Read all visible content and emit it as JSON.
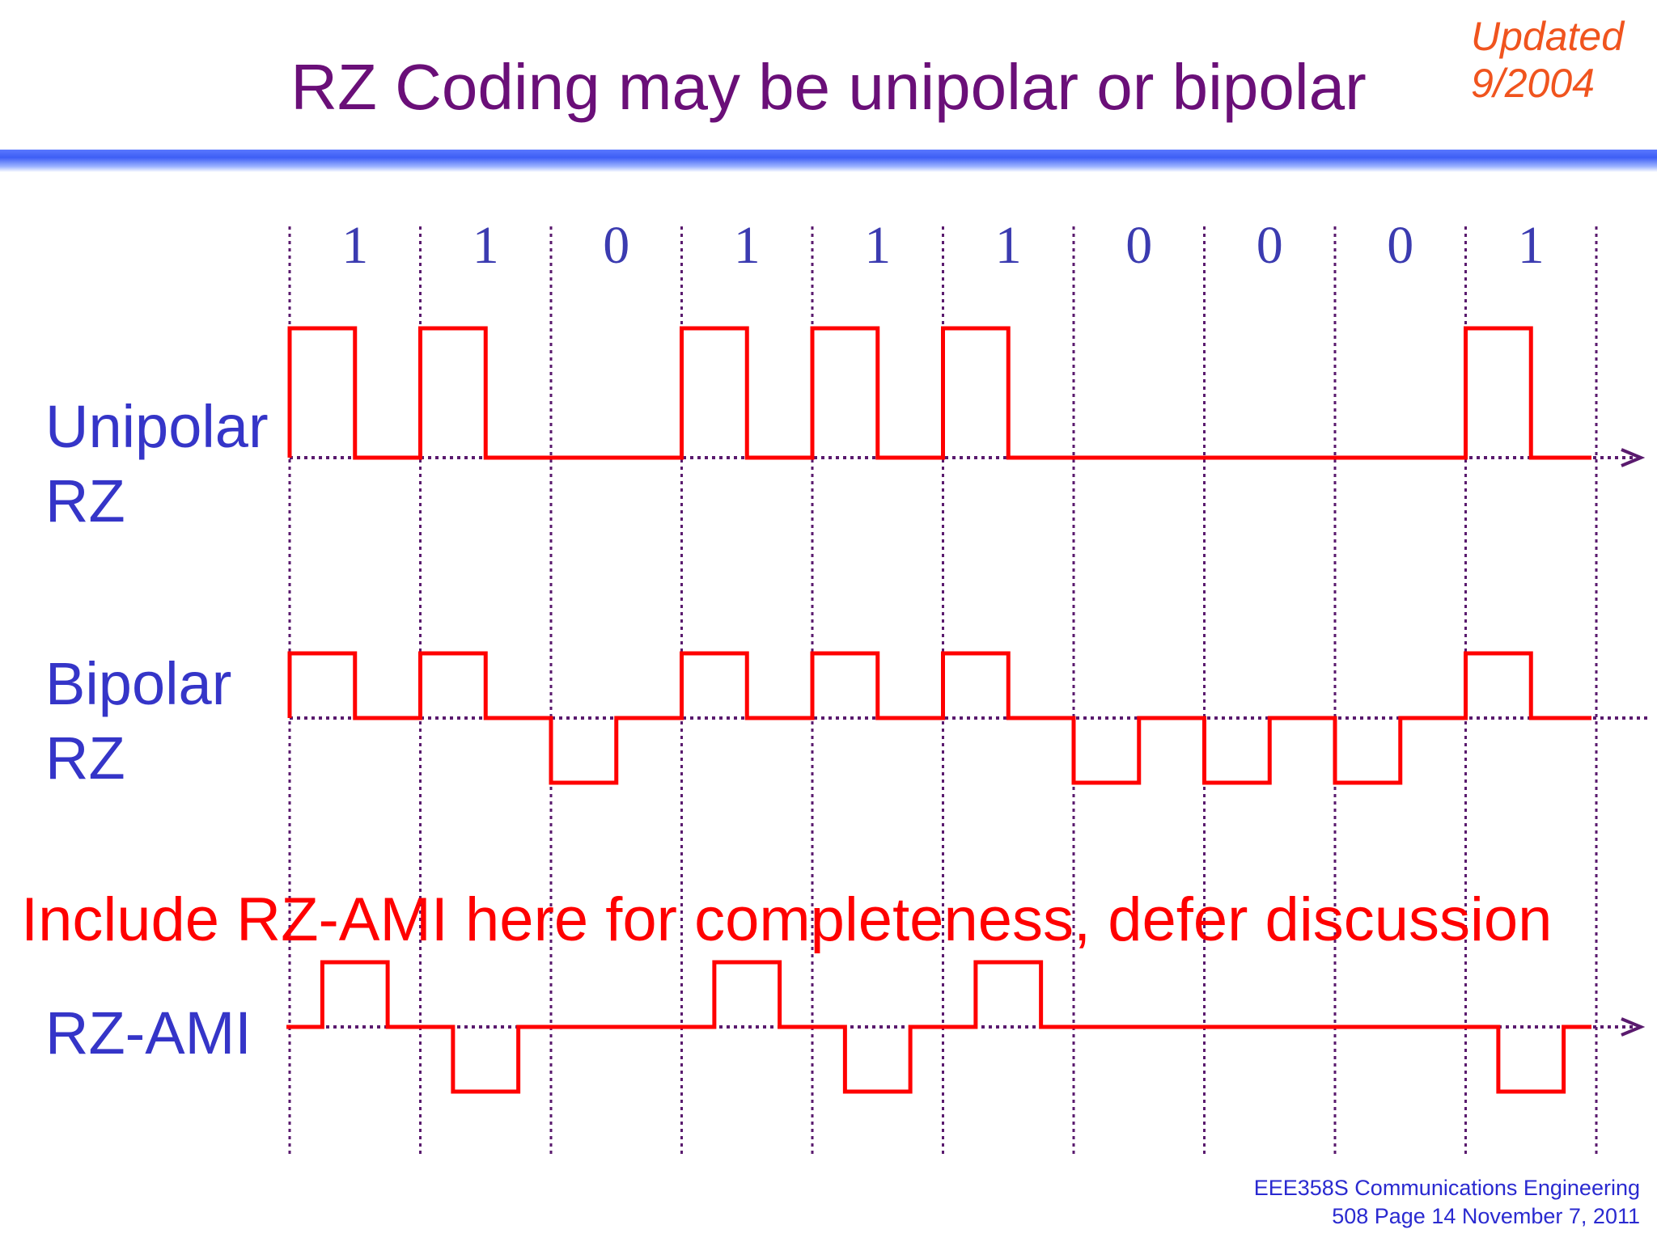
{
  "title": "RZ Coding may be unipolar or bipolar",
  "updated": {
    "line1": "Updated",
    "line2": "9/2004"
  },
  "bits": [
    "1",
    "1",
    "0",
    "1",
    "1",
    "1",
    "0",
    "0",
    "0",
    "1"
  ],
  "rows": {
    "unipolar": {
      "line1": "Unipolar",
      "line2": "RZ",
      "levels": [
        1,
        1,
        0,
        1,
        1,
        1,
        0,
        0,
        0,
        1
      ]
    },
    "bipolar": {
      "line1": "Bipolar",
      "line2": "RZ",
      "levels": [
        1,
        1,
        -1,
        1,
        1,
        1,
        -1,
        -1,
        -1,
        1
      ]
    },
    "ami": {
      "line1": "RZ-AMI",
      "levels": [
        1,
        -1,
        0,
        1,
        -1,
        1,
        0,
        0,
        0,
        -1
      ]
    }
  },
  "note": "Include RZ-AMI here for completeness, defer discussion",
  "footer": {
    "line1": "EEE358S Communications Engineering",
    "line2": "508 Page 14 November 7, 2011"
  },
  "colors": {
    "signal": "#ff0000",
    "grid": "#5a1a6e",
    "title": "#6a0f78",
    "label": "#3535c8",
    "updated": "#f0541e"
  }
}
